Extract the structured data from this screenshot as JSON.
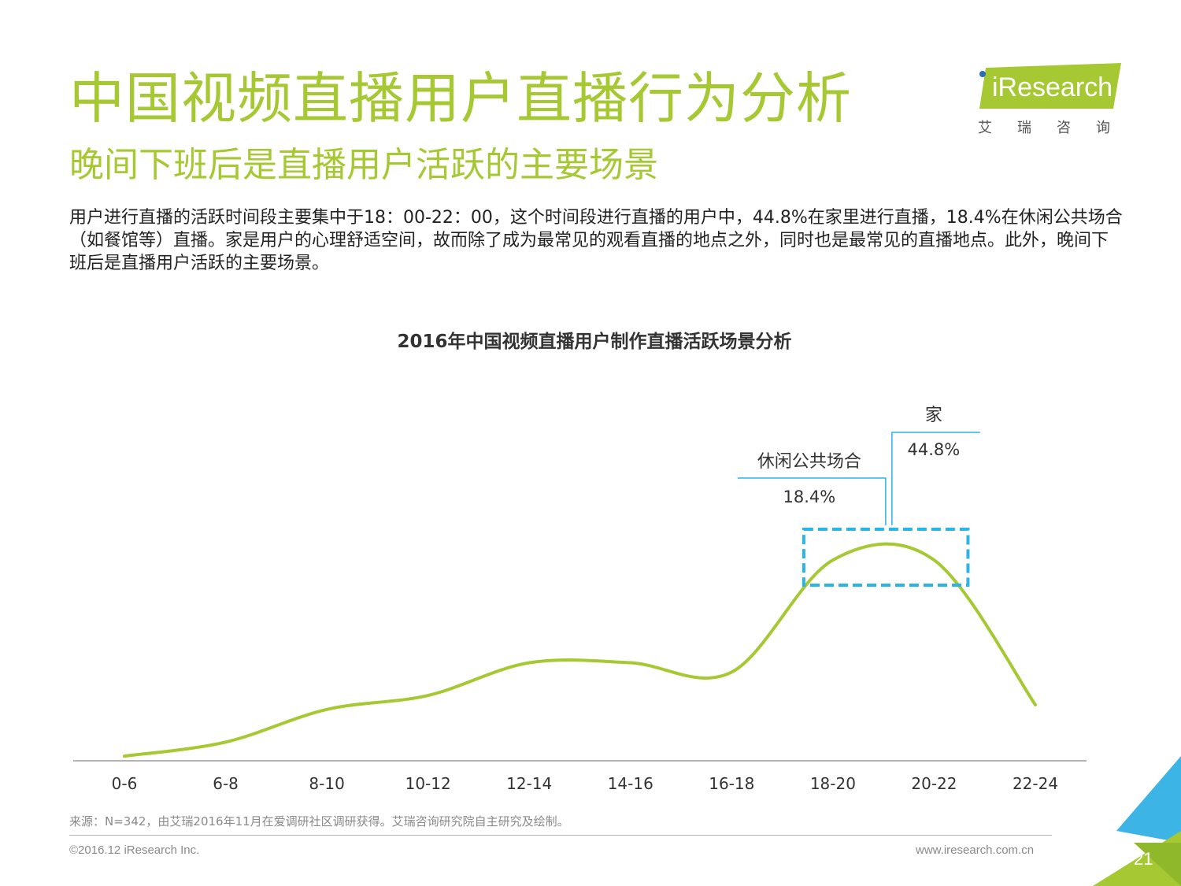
{
  "header": {
    "title": "中国视频直播用户直播行为分析",
    "subtitle": "晚间下班后是直播用户活跃的主要场景",
    "description": "用户进行直播的活跃时间段主要集中于18：00-22：00，这个时间段进行直播的用户中，44.8%在家里进行直播，18.4%在休闲公共场合（如餐馆等）直播。家是用户的心理舒适空间，故而除了成为最常见的观看直播的地点之外，同时也是最常见的直播地点。此外，晚间下班后是直播用户活跃的主要场景。"
  },
  "logo": {
    "text": "iResearch",
    "cn": "艾瑞咨询"
  },
  "colors": {
    "brand_green": "#a6c832",
    "annotation_blue": "#2ab4e8",
    "logo_bg": "#a6c832",
    "corner_blue": "#3cb5e6",
    "corner_green": "#a6c832"
  },
  "chart_data": {
    "type": "line",
    "title": "2016年中国视频直播用户制作直播活跃场景分析",
    "categories": [
      "0-6",
      "6-8",
      "8-10",
      "10-12",
      "12-14",
      "14-16",
      "16-18",
      "18-20",
      "20-22",
      "22-24"
    ],
    "values": [
      1,
      4,
      11,
      14,
      21,
      21,
      19,
      43,
      43,
      12
    ],
    "ylim": [
      0,
      55
    ],
    "axis_visible": false,
    "grid": false,
    "highlight": {
      "from": "18-20",
      "to": "20-22"
    },
    "annotations": [
      {
        "label": "家",
        "value": "44.8%"
      },
      {
        "label": "休闲公共场合",
        "value": "18.4%"
      }
    ]
  },
  "footer": {
    "source": "来源：N=342，由艾瑞2016年11月在爱调研社区调研获得。艾瑞咨询研究院自主研究及绘制。",
    "copyright": "©2016.12 iResearch Inc.",
    "website": "www.iresearch.com.cn",
    "page": "21"
  }
}
